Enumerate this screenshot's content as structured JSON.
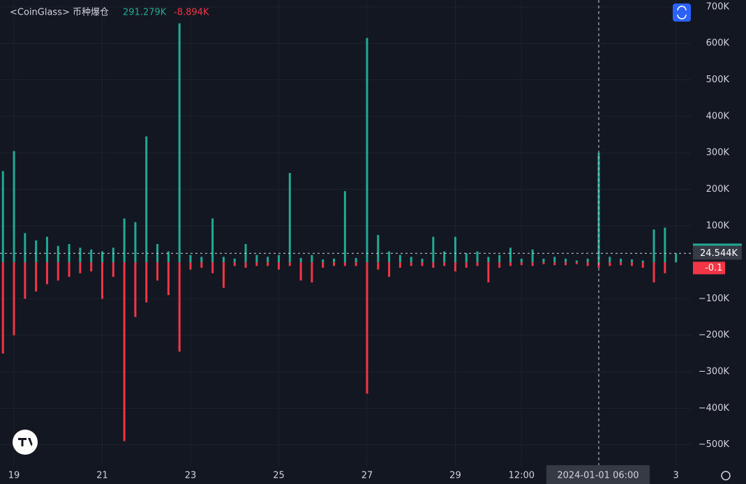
{
  "chart_data": {
    "type": "bar",
    "title": "<CoinGlass> 币种爆仓",
    "header_values": [
      {
        "value": 291.279,
        "label": "291.279K"
      },
      {
        "value": -8.894,
        "label": "-8.894K"
      }
    ],
    "x": [
      -6,
      0,
      6,
      12,
      18,
      24,
      30,
      36,
      42,
      48,
      54,
      60,
      66,
      72,
      78,
      84,
      90,
      96,
      102,
      108,
      114,
      120,
      126,
      132,
      138,
      144,
      150,
      156,
      162,
      168,
      174,
      180,
      186,
      192,
      198,
      204,
      210,
      216,
      222,
      228,
      234,
      240,
      246,
      252,
      258,
      264,
      270,
      276,
      282,
      288,
      294,
      300,
      306,
      312,
      318,
      324,
      330,
      336,
      342,
      348,
      354,
      360
    ],
    "series": [
      {
        "color": "#22ab94",
        "values": [
          250,
          305,
          80,
          60,
          70,
          45,
          50,
          40,
          35,
          30,
          40,
          120,
          110,
          345,
          50,
          30,
          655,
          20,
          15,
          120,
          15,
          10,
          50,
          20,
          15,
          20,
          245,
          12,
          20,
          8,
          10,
          195,
          12,
          615,
          75,
          30,
          20,
          15,
          10,
          70,
          30,
          70,
          25,
          30,
          15,
          20,
          40,
          10,
          35,
          10,
          15,
          10,
          5,
          10,
          300,
          15,
          10,
          8,
          5,
          90,
          95,
          24.544
        ]
      },
      {
        "color": "#f23645",
        "values": [
          -250,
          -200,
          -100,
          -80,
          -60,
          -50,
          -40,
          -30,
          -25,
          -100,
          -40,
          -490,
          -150,
          -110,
          -50,
          -90,
          -245,
          -20,
          -15,
          -30,
          -70,
          -10,
          -15,
          -10,
          -10,
          -20,
          -10,
          -50,
          -55,
          -15,
          -10,
          -10,
          -10,
          -360,
          -20,
          -40,
          -15,
          -10,
          -10,
          -15,
          -10,
          -25,
          -15,
          -10,
          -55,
          -15,
          -10,
          -8,
          -10,
          -5,
          -8,
          -8,
          -5,
          -10,
          -15,
          -10,
          -8,
          -10,
          -15,
          -55,
          -30,
          -0.1
        ]
      }
    ],
    "last_values": [
      {
        "value": 24.544,
        "label": "24.544K"
      },
      {
        "value": -0.1,
        "label": "-0.1"
      }
    ],
    "xlim": [
      -7.6,
      368.1
    ],
    "xticks": [
      {
        "value": 0,
        "label": "19"
      },
      {
        "value": 48,
        "label": "21"
      },
      {
        "value": 96,
        "label": "23"
      },
      {
        "value": 144,
        "label": "25"
      },
      {
        "value": 192,
        "label": "27"
      },
      {
        "value": 240,
        "label": "29"
      },
      {
        "value": 276,
        "label": "12:00"
      },
      {
        "value": 360,
        "label": "3"
      }
    ],
    "ylim": [
      -558,
      719
    ],
    "yticks": [
      {
        "value": 700,
        "label": "700K"
      },
      {
        "value": 600,
        "label": "600K"
      },
      {
        "value": 500,
        "label": "500K"
      },
      {
        "value": 400,
        "label": "400K"
      },
      {
        "value": 300,
        "label": "300K"
      },
      {
        "value": 200,
        "label": "200K"
      },
      {
        "value": 100,
        "label": "100K"
      },
      {
        "value": -100,
        "label": "−100K"
      },
      {
        "value": -200,
        "label": "−200K"
      },
      {
        "value": -300,
        "label": "−300K"
      },
      {
        "value": -400,
        "label": "−400K"
      },
      {
        "value": -500,
        "label": "−500K"
      }
    ],
    "crosshair": {
      "x": 318,
      "label": "2024-01-01 06:00"
    },
    "grid": true
  }
}
